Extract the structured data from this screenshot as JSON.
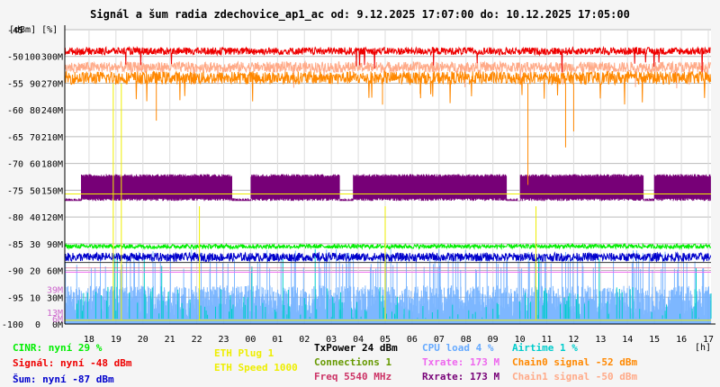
{
  "title": "Signál a šum radia zdechovice_ap1_ac od: 9.12.2025 17:07:00 do: 10.12.2025 17:05:00",
  "units_label": "[dBm] [%]",
  "x_unit": "[h]",
  "legend": {
    "cinr": "CINR: nyní 29 %",
    "signal": "Signál: nyní -48 dBm",
    "noise": "Šum: nyní -87 dBm",
    "eth_plug": "ETH Plug 1",
    "eth_speed": "ETH Speed 1000",
    "txpower": "TxPower 24 dBm",
    "connections": "Connections 1",
    "freq": "Freq 5540 MHz",
    "cpu": "CPU load 4 %",
    "txrate": "Txrate: 173 M",
    "rxrate": "Rxrate: 173 M",
    "airtime": "Airtime 1 %",
    "chain0": "Chain0 signal -52 dBm",
    "chain1": "Chain1 signal -50 dBm"
  },
  "colors": {
    "cinr": "#00ee00",
    "signal": "#ee0000",
    "noise": "#0000cc",
    "eth": "#eeee00",
    "txpower": "#000000",
    "connections": "#669900",
    "freq": "#cc3366",
    "cpu": "#66aaff",
    "txrate": "#ee66ee",
    "rxrate": "#770077",
    "airtime": "#00cccc",
    "chain0": "#ff8800",
    "chain1": "#ffaa88"
  },
  "chart_data": {
    "type": "line",
    "title": "Signál a šum radia zdechovice_ap1_ac od: 9.12.2025 17:07:00 do: 10.12.2025 17:05:00",
    "x_ticks": [
      "18",
      "19",
      "20",
      "21",
      "22",
      "23",
      "00",
      "01",
      "02",
      "03",
      "04",
      "05",
      "06",
      "07",
      "08",
      "09",
      "10",
      "11",
      "12",
      "13",
      "14",
      "15",
      "16",
      "17"
    ],
    "xlabel": "[h]",
    "y_ticks": [
      {
        "dbm": "-45",
        "pct": "",
        "rate": ""
      },
      {
        "dbm": "-50",
        "pct": "100",
        "rate": "300M"
      },
      {
        "dbm": "-55",
        "pct": "90",
        "rate": "270M"
      },
      {
        "dbm": "-60",
        "pct": "80",
        "rate": "240M"
      },
      {
        "dbm": "-65",
        "pct": "70",
        "rate": "210M"
      },
      {
        "dbm": "-70",
        "pct": "60",
        "rate": "180M"
      },
      {
        "dbm": "-75",
        "pct": "50",
        "rate": "150M"
      },
      {
        "dbm": "-80",
        "pct": "40",
        "rate": "120M"
      },
      {
        "dbm": "-85",
        "pct": "30",
        "rate": "90M"
      },
      {
        "dbm": "-90",
        "pct": "20",
        "rate": "60M"
      },
      {
        "dbm": "-95",
        "pct": "10",
        "rate": "30M"
      },
      {
        "dbm": "-100",
        "pct": "0",
        "rate": "0M"
      }
    ],
    "extra_ticks": [
      {
        "label": "39M",
        "dbm": -93.5
      },
      {
        "label": "13M",
        "dbm": -97.8
      },
      {
        "label": "6M",
        "dbm": -99
      }
    ],
    "ylim_dbm": [
      -100,
      -45
    ],
    "xlim_h": [
      17.1,
      41.1
    ],
    "series": [
      {
        "name": "Signál",
        "key": "signal",
        "unit": "dBm",
        "base": -49,
        "jitter": 0.7,
        "spike": -52
      },
      {
        "name": "Chain1 signal",
        "key": "chain1",
        "unit": "dBm",
        "base": -52,
        "jitter": 1.0,
        "spike": -55
      },
      {
        "name": "Chain0 signal",
        "key": "chain0",
        "unit": "dBm",
        "base": -54,
        "jitter": 1.2,
        "spike": -58
      },
      {
        "name": "Rxrate",
        "key": "rxrate",
        "unit": "dBm-scale",
        "base": -72,
        "low": -77,
        "jitter": 0.5
      },
      {
        "name": "CINR",
        "key": "cinr",
        "unit": "dBm-scale",
        "base": -85.5,
        "jitter": 0.4
      },
      {
        "name": "Šum",
        "key": "noise",
        "unit": "dBm",
        "base": -87.5,
        "jitter": 0.8
      },
      {
        "name": "CPU load",
        "key": "cpu",
        "unit": "dBm-scale",
        "base": -97,
        "jitter": 3.0,
        "spike": -86
      },
      {
        "name": "Airtime",
        "key": "airtime",
        "unit": "dBm-scale",
        "base": -99,
        "jitter": 1.0,
        "spike": -82
      }
    ]
  }
}
